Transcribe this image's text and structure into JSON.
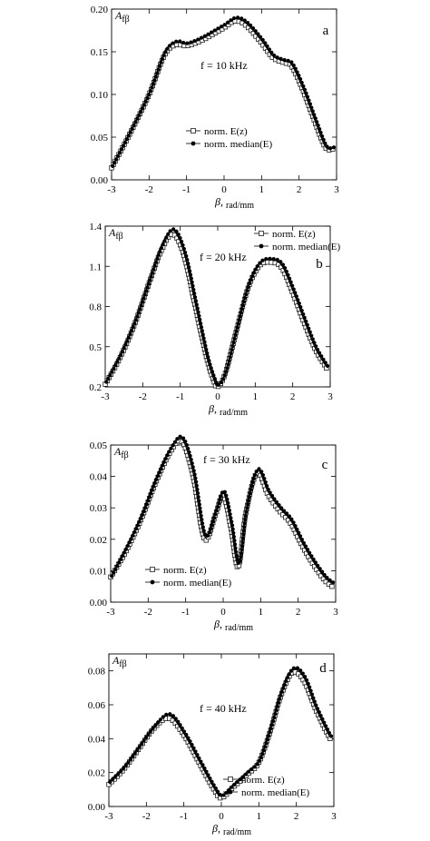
{
  "ylabel_main": "A",
  "ylabel_sub": "fβ",
  "xlabel_main": "β,",
  "xlabel_sub": "rad/mm",
  "legend": {
    "open": "norm. E(z)",
    "filled": "norm. median(E)"
  },
  "colors": {
    "ink": "#000000"
  },
  "chart_data": [
    {
      "type": "line",
      "panel": "a",
      "annotation": "f = 10 kHz",
      "xlim": [
        -3,
        3
      ],
      "ylim": [
        0.0,
        0.2
      ],
      "xticks": [
        -3,
        -2,
        -1,
        0,
        1,
        2,
        3
      ],
      "yticks": [
        "0.00",
        "0.05",
        "0.10",
        "0.15",
        "0.20"
      ],
      "legend_position": "center",
      "x": [
        -3.0,
        -2.5,
        -2.0,
        -1.6,
        -1.3,
        -1.0,
        -0.6,
        -0.2,
        0.0,
        0.3,
        0.6,
        1.0,
        1.3,
        1.6,
        1.8,
        2.1,
        2.4,
        2.7,
        2.9
      ],
      "series": [
        {
          "name": "norm. E(z)",
          "marker": "open-square",
          "values": [
            0.014,
            0.055,
            0.1,
            0.145,
            0.158,
            0.157,
            0.163,
            0.173,
            0.178,
            0.186,
            0.18,
            0.16,
            0.143,
            0.137,
            0.133,
            0.105,
            0.07,
            0.038,
            0.036
          ]
        },
        {
          "name": "norm. median(E)",
          "marker": "filled-circle",
          "values": [
            0.015,
            0.057,
            0.102,
            0.148,
            0.161,
            0.159,
            0.166,
            0.176,
            0.181,
            0.189,
            0.183,
            0.163,
            0.145,
            0.139,
            0.135,
            0.107,
            0.072,
            0.039,
            0.037
          ]
        }
      ]
    },
    {
      "type": "line",
      "panel": "b",
      "annotation": "f = 20 kHz",
      "xlim": [
        -3,
        3
      ],
      "ylim": [
        0.2,
        1.4
      ],
      "xticks": [
        -3,
        -2,
        -1,
        0,
        1,
        2,
        3
      ],
      "yticks": [
        "0.2",
        "0.5",
        "0.8",
        "1.1",
        "1.4"
      ],
      "legend_position": "top-right",
      "x": [
        -3.0,
        -2.6,
        -2.2,
        -1.8,
        -1.5,
        -1.2,
        -0.9,
        -0.6,
        -0.3,
        -0.1,
        0.0,
        0.2,
        0.5,
        0.8,
        1.1,
        1.4,
        1.7,
        2.0,
        2.3,
        2.6,
        2.9
      ],
      "series": [
        {
          "name": "norm. E(z)",
          "marker": "open-square",
          "values": [
            0.22,
            0.42,
            0.68,
            1.0,
            1.22,
            1.34,
            1.18,
            0.8,
            0.42,
            0.24,
            0.2,
            0.3,
            0.62,
            0.93,
            1.1,
            1.13,
            1.09,
            0.9,
            0.68,
            0.48,
            0.34
          ]
        },
        {
          "name": "norm. median(E)",
          "marker": "filled-circle",
          "values": [
            0.23,
            0.44,
            0.7,
            1.02,
            1.25,
            1.37,
            1.2,
            0.82,
            0.43,
            0.25,
            0.21,
            0.31,
            0.64,
            0.95,
            1.12,
            1.15,
            1.11,
            0.92,
            0.7,
            0.49,
            0.35
          ]
        }
      ]
    },
    {
      "type": "line",
      "panel": "c",
      "annotation": "f = 30 kHz",
      "xlim": [
        -3,
        3
      ],
      "ylim": [
        0.0,
        0.05
      ],
      "xticks": [
        -3,
        -2,
        -1,
        0,
        1,
        2,
        3
      ],
      "yticks": [
        "0.00",
        "0.01",
        "0.02",
        "0.03",
        "0.04",
        "0.05"
      ],
      "legend_position": "bottom-left",
      "x": [
        -3.0,
        -2.6,
        -2.2,
        -1.8,
        -1.4,
        -1.1,
        -0.8,
        -0.5,
        -0.2,
        0.0,
        0.2,
        0.4,
        0.6,
        0.9,
        1.2,
        1.5,
        1.8,
        2.1,
        2.4,
        2.7,
        2.9
      ],
      "series": [
        {
          "name": "norm. E(z)",
          "marker": "open-square",
          "values": [
            0.008,
            0.016,
            0.026,
            0.038,
            0.048,
            0.051,
            0.04,
            0.02,
            0.028,
            0.034,
            0.024,
            0.011,
            0.028,
            0.041,
            0.034,
            0.029,
            0.025,
            0.018,
            0.012,
            0.007,
            0.005
          ]
        },
        {
          "name": "norm. median(E)",
          "marker": "filled-circle",
          "values": [
            0.008,
            0.017,
            0.027,
            0.039,
            0.049,
            0.052,
            0.041,
            0.021,
            0.029,
            0.035,
            0.025,
            0.012,
            0.029,
            0.042,
            0.035,
            0.03,
            0.026,
            0.019,
            0.013,
            0.008,
            0.006
          ]
        }
      ]
    },
    {
      "type": "line",
      "panel": "d",
      "annotation": "f = 40 kHz",
      "xlim": [
        -3,
        3
      ],
      "ylim": [
        0.0,
        0.09
      ],
      "xticks": [
        -3,
        -2,
        -1,
        0,
        1,
        2,
        3
      ],
      "yticks": [
        "0.00",
        "0.02",
        "0.04",
        "0.06",
        "0.08"
      ],
      "legend_position": "bottom-right",
      "x": [
        -3.0,
        -2.6,
        -2.2,
        -1.8,
        -1.4,
        -1.0,
        -0.6,
        -0.2,
        0.0,
        0.3,
        0.7,
        1.0,
        1.3,
        1.6,
        1.9,
        2.2,
        2.5,
        2.8,
        2.9
      ],
      "series": [
        {
          "name": "norm. E(z)",
          "marker": "open-square",
          "values": [
            0.013,
            0.022,
            0.034,
            0.046,
            0.052,
            0.042,
            0.026,
            0.01,
            0.005,
            0.011,
            0.019,
            0.026,
            0.044,
            0.066,
            0.079,
            0.074,
            0.058,
            0.044,
            0.04
          ]
        },
        {
          "name": "norm. median(E)",
          "marker": "filled-circle",
          "values": [
            0.014,
            0.023,
            0.035,
            0.047,
            0.054,
            0.043,
            0.027,
            0.011,
            0.006,
            0.012,
            0.02,
            0.027,
            0.046,
            0.068,
            0.081,
            0.076,
            0.059,
            0.045,
            0.041
          ]
        }
      ]
    }
  ]
}
